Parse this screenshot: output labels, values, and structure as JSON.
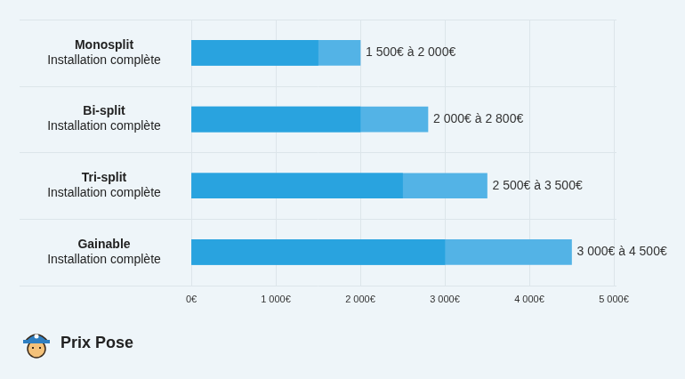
{
  "chart_data": {
    "type": "bar",
    "orientation": "horizontal",
    "categories": [
      [
        "Monosplit",
        "Installation complète"
      ],
      [
        "Bi-split",
        "Installation complète"
      ],
      [
        "Tri-split",
        "Installation complète"
      ],
      [
        "Gainable",
        "Installation complète"
      ]
    ],
    "series": [
      {
        "color": "#29a3df",
        "values": [
          1500,
          2000,
          2500,
          3000
        ]
      },
      {
        "color": "#53b3e6",
        "values": [
          2000,
          2800,
          3500,
          4500
        ],
        "value_labels": [
          "1 500€ à 2 000€",
          "2 000€ à 2 800€",
          "2 500€ à 3 500€",
          "3 000€ à 4 500€"
        ]
      }
    ],
    "xlim": [
      0,
      5000
    ],
    "xticks": [
      {
        "value": 0,
        "label": "0€"
      },
      {
        "value": 1000,
        "label": "1 000€"
      },
      {
        "value": 2000,
        "label": "2 000€"
      },
      {
        "value": 3000,
        "label": "3 000€"
      },
      {
        "value": 4000,
        "label": "4 000€"
      },
      {
        "value": 5000,
        "label": "5 000€"
      }
    ],
    "grid": true,
    "data_labels": true,
    "annotations": [
      "Prix Pose"
    ]
  }
}
